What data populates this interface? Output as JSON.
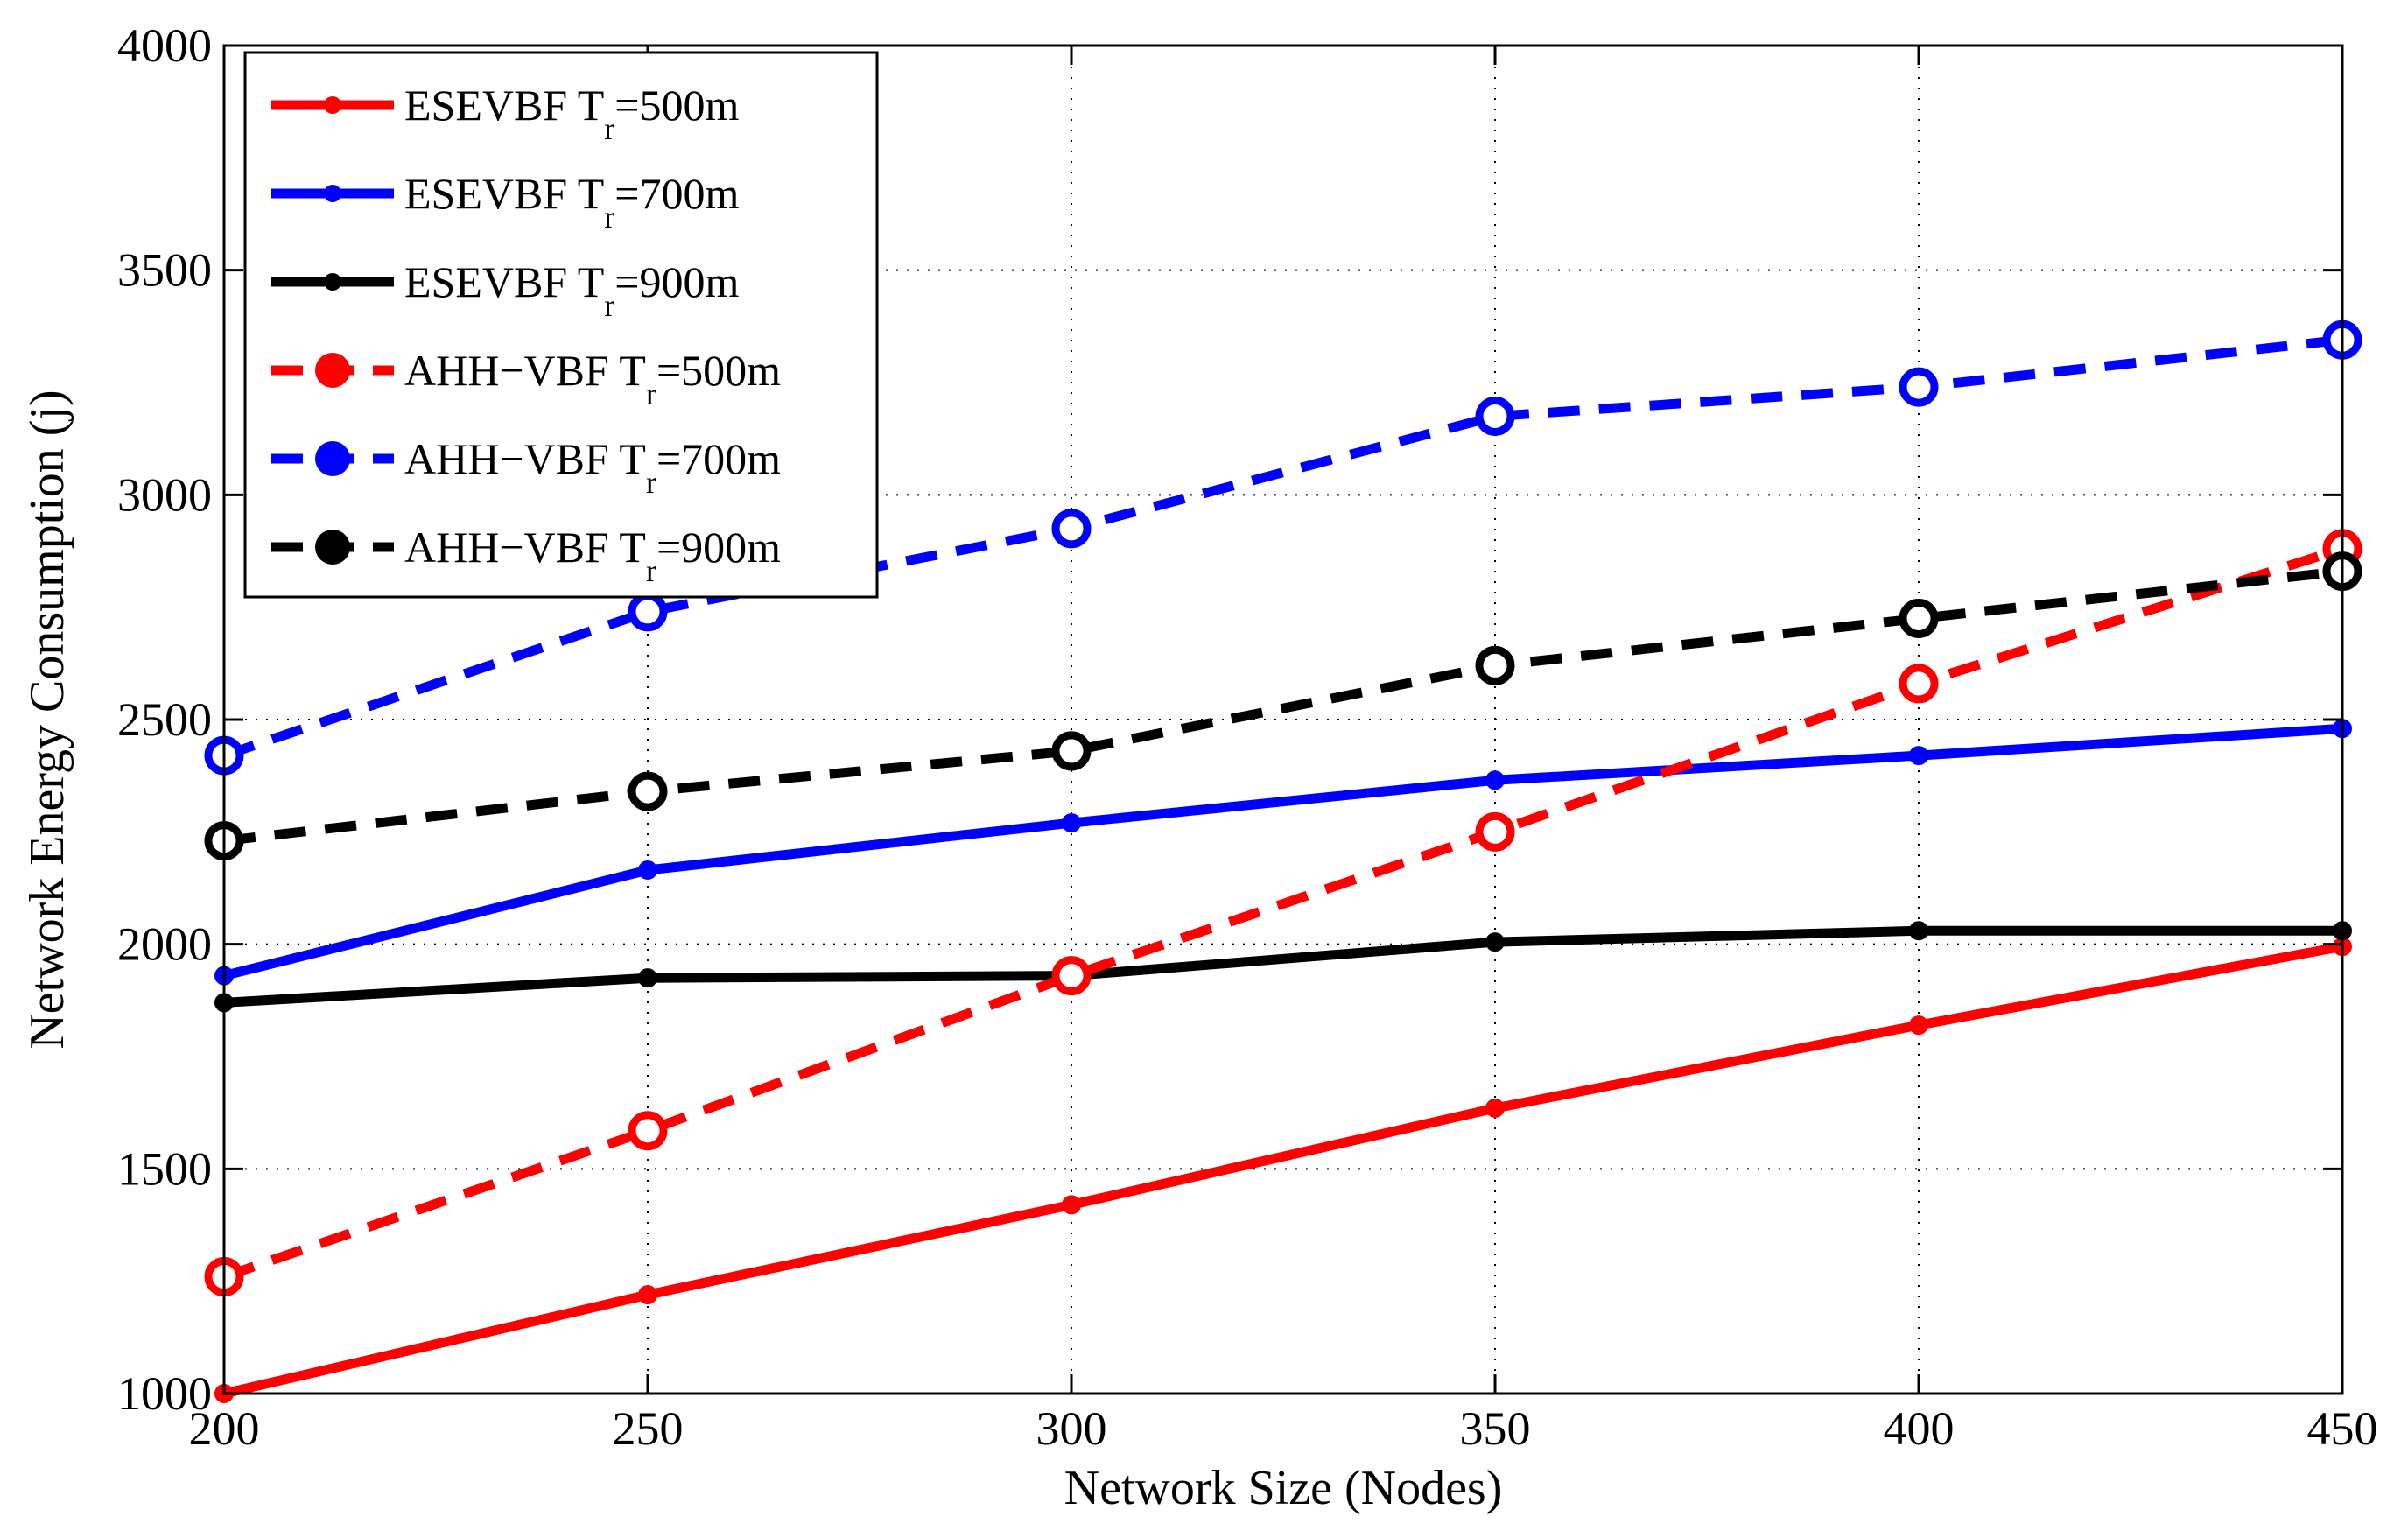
{
  "chart_data": {
    "type": "line",
    "title": "",
    "xlabel": "Network Size (Nodes)",
    "ylabel": "Network Energy Consumption (j)",
    "xlim": [
      200,
      450
    ],
    "ylim": [
      1000,
      4000
    ],
    "xticks": [
      200,
      250,
      300,
      350,
      400,
      450
    ],
    "yticks": [
      1000,
      1500,
      2000,
      2500,
      3000,
      3500,
      4000
    ],
    "grid": true,
    "legend_position": "top-left",
    "x": [
      200,
      250,
      300,
      350,
      400,
      450
    ],
    "series": [
      {
        "name": "ESEVBF T",
        "sub": "r",
        "suffix": "=500m",
        "color": "#ff0000",
        "style": "solid",
        "marker": "small",
        "values": [
          1000,
          1220,
          1420,
          1635,
          1820,
          1995
        ]
      },
      {
        "name": "ESEVBF T",
        "sub": "r",
        "suffix": "=700m",
        "color": "#0000ff",
        "style": "solid",
        "marker": "small",
        "values": [
          1930,
          2165,
          2270,
          2365,
          2420,
          2480
        ]
      },
      {
        "name": "ESEVBF T",
        "sub": "r",
        "suffix": "=900m",
        "color": "#000000",
        "style": "solid",
        "marker": "small",
        "values": [
          1870,
          1925,
          1930,
          2005,
          2030,
          2030
        ]
      },
      {
        "name": "AHH−VBF T",
        "sub": "r",
        "suffix": "=500m",
        "color": "#ff0000",
        "style": "dashed",
        "marker": "circle",
        "values": [
          1260,
          1585,
          1930,
          2250,
          2580,
          2880
        ]
      },
      {
        "name": "AHH−VBF T",
        "sub": "r",
        "suffix": "=700m",
        "color": "#0000ff",
        "style": "dashed",
        "marker": "circle",
        "values": [
          2420,
          2740,
          2925,
          3175,
          3240,
          3345
        ]
      },
      {
        "name": "AHH−VBF T",
        "sub": "r",
        "suffix": "=900m",
        "color": "#000000",
        "style": "dashed",
        "marker": "circle",
        "values": [
          2230,
          2340,
          2430,
          2620,
          2725,
          2830
        ]
      }
    ]
  }
}
